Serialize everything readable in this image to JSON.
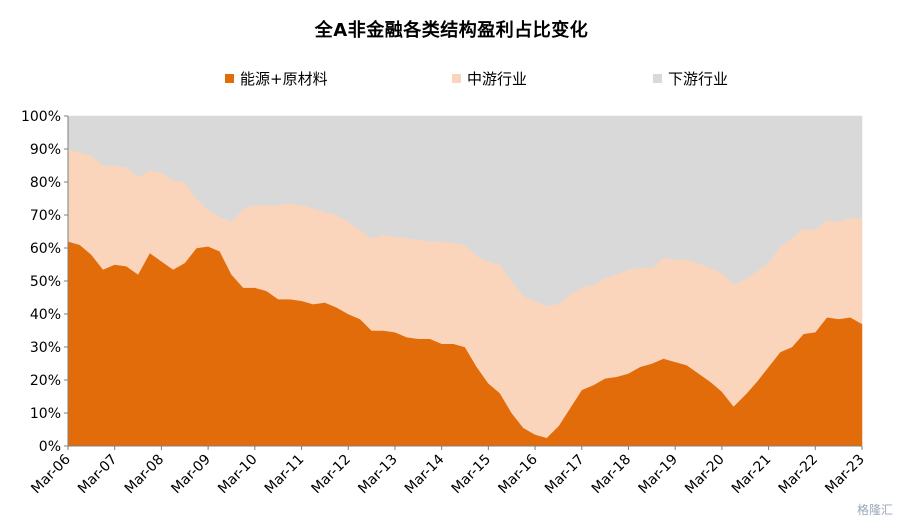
{
  "chart_data": {
    "type": "area",
    "stacked": true,
    "percent": true,
    "title": "全A非金融各类结构盈利占比变化",
    "xlabel": "",
    "ylabel": "",
    "ylim": [
      0,
      100
    ],
    "y_ticks": [
      "0%",
      "10%",
      "20%",
      "30%",
      "40%",
      "50%",
      "60%",
      "70%",
      "80%",
      "90%",
      "100%"
    ],
    "x_ticks": [
      "Mar-06",
      "Mar-07",
      "Mar-08",
      "Mar-09",
      "Mar-10",
      "Mar-11",
      "Mar-12",
      "Mar-13",
      "Mar-14",
      "Mar-15",
      "Mar-16",
      "Mar-17",
      "Mar-18",
      "Mar-19",
      "Mar-20",
      "Mar-21",
      "Mar-22",
      "Mar-23"
    ],
    "x_start": "Mar-06",
    "x_end": "Mar-23",
    "legend_position": "top-center",
    "grid": false,
    "x": [
      2006.0,
      2006.25,
      2006.5,
      2006.75,
      2007.0,
      2007.25,
      2007.5,
      2007.75,
      2008.0,
      2008.25,
      2008.5,
      2008.75,
      2009.0,
      2009.25,
      2009.5,
      2009.75,
      2010.0,
      2010.25,
      2010.5,
      2010.75,
      2011.0,
      2011.25,
      2011.5,
      2011.75,
      2012.0,
      2012.25,
      2012.5,
      2012.75,
      2013.0,
      2013.25,
      2013.5,
      2013.75,
      2014.0,
      2014.25,
      2014.5,
      2014.75,
      2015.0,
      2015.25,
      2015.5,
      2015.75,
      2016.0,
      2016.25,
      2016.5,
      2016.75,
      2017.0,
      2017.25,
      2017.5,
      2017.75,
      2018.0,
      2018.25,
      2018.5,
      2018.75,
      2019.0,
      2019.25,
      2019.5,
      2019.75,
      2020.0,
      2020.25,
      2020.5,
      2020.75,
      2021.0,
      2021.25,
      2021.5,
      2021.75,
      2022.0,
      2022.25,
      2022.5,
      2022.75,
      2023.0
    ],
    "series": [
      {
        "name": "能源+原材料",
        "color": "#E36C0A",
        "values": [
          62,
          61,
          58,
          53.5,
          55,
          54.5,
          52,
          58.5,
          56,
          53.5,
          55.5,
          60,
          60.5,
          59,
          52,
          48,
          48,
          47,
          44.5,
          44.5,
          44,
          43,
          43.5,
          42,
          40,
          38.5,
          35,
          35,
          34.5,
          33,
          32.5,
          32.5,
          31,
          31,
          30,
          24,
          19,
          16,
          10,
          5.5,
          3.5,
          2.5,
          6,
          11.5,
          17,
          18.5,
          20.5,
          21,
          22,
          24,
          25,
          26.5,
          25.5,
          24.5,
          22,
          19.5,
          16.5,
          12,
          15.5,
          19.5,
          24,
          28.5,
          30,
          34,
          34.5,
          39,
          38.5,
          39,
          37
        ]
      },
      {
        "name": "中游行业",
        "color": "#FAD5BC",
        "values": [
          28,
          28,
          30,
          31.5,
          30,
          30,
          29.5,
          25,
          27,
          27,
          24.5,
          15,
          11,
          10.5,
          16,
          24,
          25,
          26,
          28.5,
          29,
          29,
          29,
          27.5,
          28,
          28,
          27,
          28,
          29,
          29,
          30,
          30,
          29.5,
          31,
          30.5,
          31,
          33.5,
          37,
          39,
          40,
          40,
          40.5,
          40,
          37,
          34.5,
          31,
          30.5,
          30.5,
          31,
          31.5,
          30,
          29,
          30.5,
          31,
          32,
          33.5,
          34.5,
          36,
          37,
          35,
          33.5,
          31.5,
          32,
          33,
          32,
          31,
          29.5,
          29.5,
          30,
          32
        ]
      },
      {
        "name": "下游行业",
        "color": "#D9D9D9",
        "values": [
          10,
          11,
          12,
          15,
          15,
          15.5,
          18.5,
          16.5,
          17,
          19.5,
          20,
          25,
          28.5,
          30.5,
          32,
          28,
          27,
          27,
          27,
          26.5,
          27,
          28,
          29,
          30,
          32,
          34.5,
          37,
          36,
          36.5,
          37,
          37.5,
          38,
          38,
          38.5,
          39,
          42.5,
          44,
          45,
          50,
          54.5,
          56,
          57.5,
          57,
          54,
          52,
          51,
          49,
          48,
          46.5,
          46,
          46,
          43,
          43.5,
          43.5,
          44.5,
          46,
          47.5,
          51,
          49.5,
          47,
          44.5,
          39.5,
          37,
          34,
          34.5,
          31.5,
          32,
          31,
          31
        ]
      }
    ]
  },
  "watermark": "格隆汇"
}
